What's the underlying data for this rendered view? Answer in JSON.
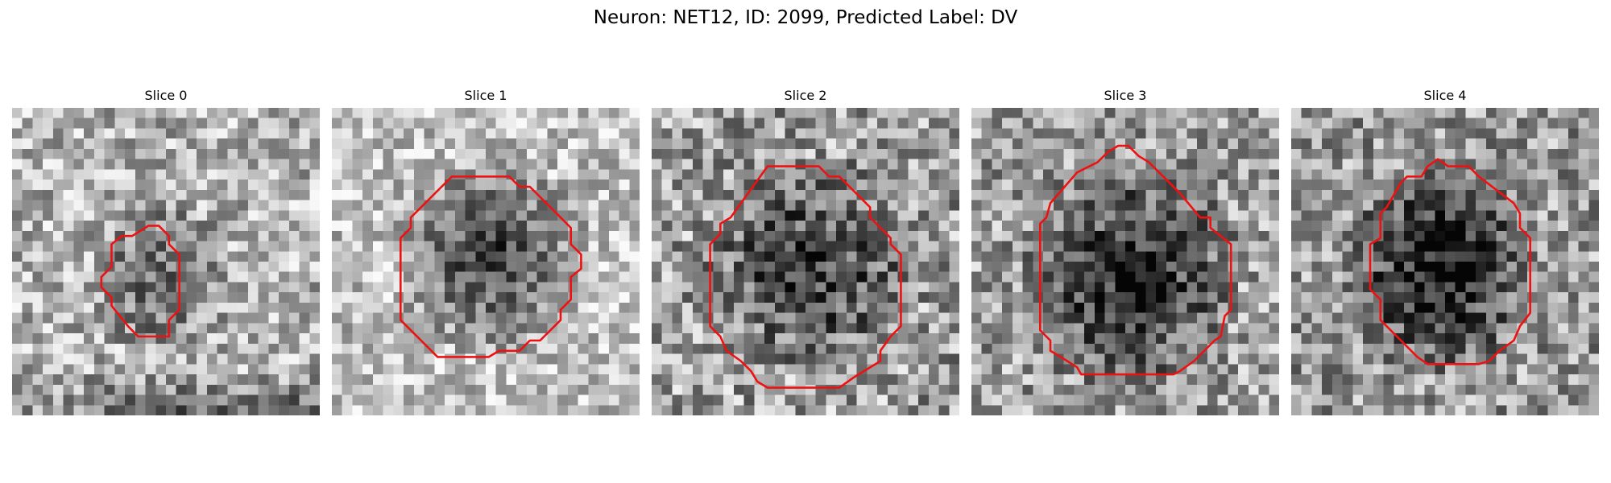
{
  "figure": {
    "title": "Neuron: NET12, ID: 2099, Predicted Label: DV"
  },
  "slices": [
    {
      "label": "Slice 0"
    },
    {
      "label": "Slice 1"
    },
    {
      "label": "Slice 2"
    },
    {
      "label": "Slice 3"
    },
    {
      "label": "Slice 4"
    }
  ],
  "colors": {
    "contour": "#ee1111",
    "background": "#ffffff"
  },
  "image_description": "grayscale pixelated microscopy crops with red outline contour"
}
